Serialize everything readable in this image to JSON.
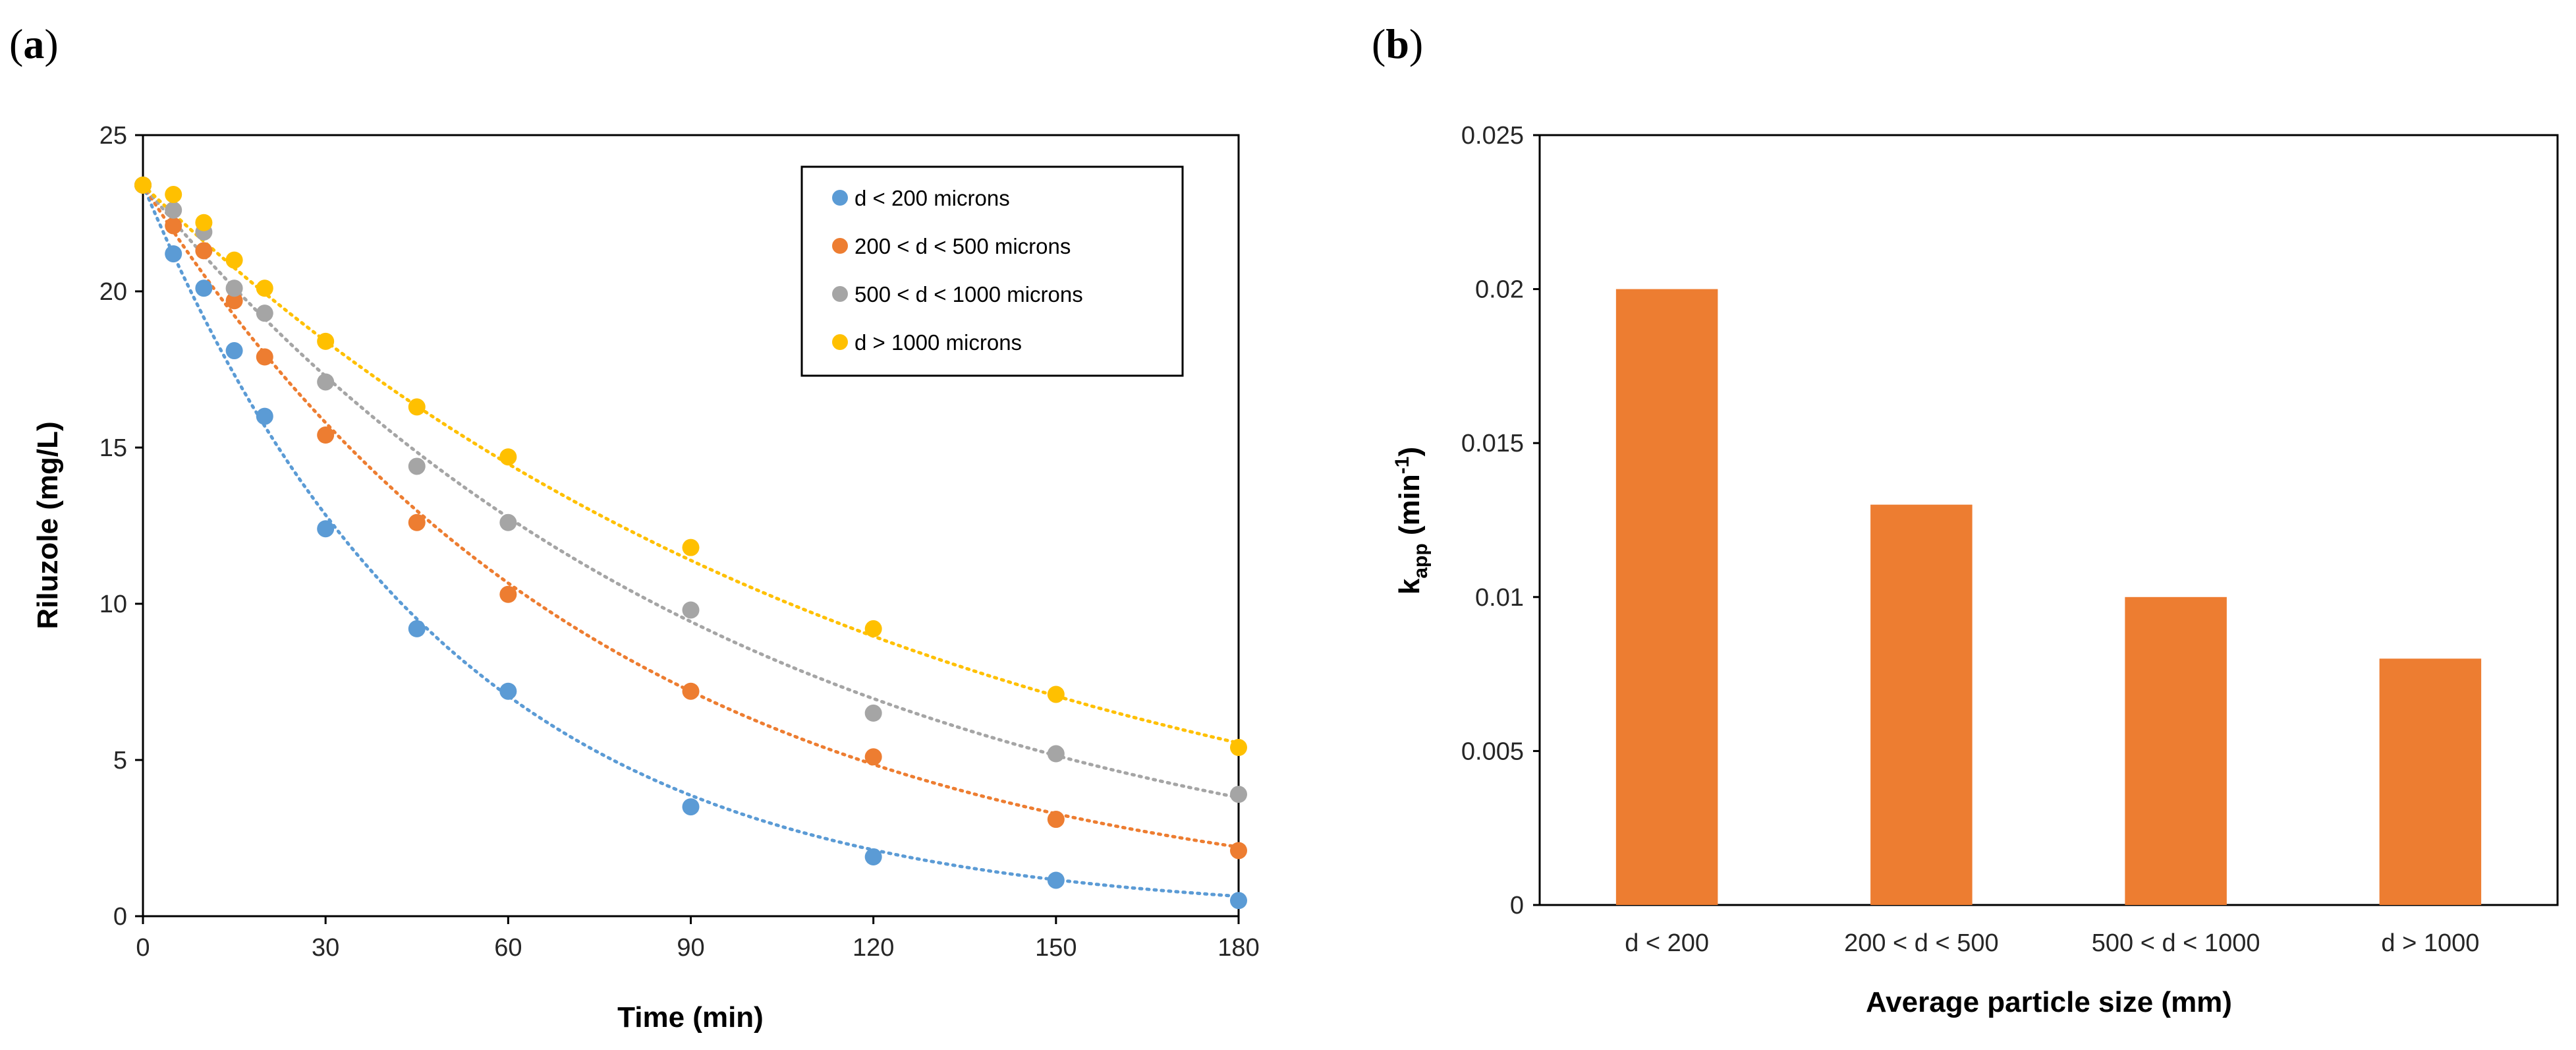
{
  "panels": {
    "a_open": "(",
    "a_letter": "a",
    "a_close": ")",
    "b_open": "(",
    "b_letter": "b",
    "b_close": ")"
  },
  "chart_data": [
    {
      "type": "scatter",
      "panel": "a",
      "title": "",
      "xlabel": "Time (min)",
      "ylabel": "Riluzole (mg/L)",
      "xlim": [
        0,
        180
      ],
      "ylim": [
        0,
        25
      ],
      "xticks": [
        0,
        30,
        60,
        90,
        120,
        150,
        180
      ],
      "yticks": [
        0,
        5,
        10,
        15,
        20,
        25
      ],
      "legend_position": "top-right",
      "series": [
        {
          "name": "d < 200 microns",
          "color": "#5B9BD5",
          "x": [
            0,
            5,
            10,
            15,
            20,
            30,
            45,
            60,
            90,
            120,
            150,
            180
          ],
          "y": [
            23.4,
            21.2,
            20.1,
            18.1,
            16.0,
            12.4,
            9.2,
            7.2,
            3.5,
            1.9,
            1.15,
            0.5
          ],
          "fit_k": 0.02
        },
        {
          "name": "200 < d < 500 microns",
          "color": "#ED7D31",
          "x": [
            0,
            5,
            10,
            15,
            20,
            30,
            45,
            60,
            90,
            120,
            150,
            180
          ],
          "y": [
            23.4,
            22.1,
            21.3,
            19.7,
            17.9,
            15.4,
            12.6,
            10.3,
            7.2,
            5.1,
            3.1,
            2.1
          ],
          "fit_k": 0.0131
        },
        {
          "name": "500 < d < 1000 microns",
          "color": "#A5A5A5",
          "x": [
            0,
            5,
            10,
            15,
            20,
            30,
            45,
            60,
            90,
            120,
            150,
            180
          ],
          "y": [
            23.4,
            22.6,
            21.9,
            20.1,
            19.3,
            17.1,
            14.4,
            12.6,
            9.8,
            6.5,
            5.2,
            3.9
          ],
          "fit_k": 0.0101
        },
        {
          "name": "d > 1000 microns",
          "color": "#FFC000",
          "x": [
            0,
            5,
            10,
            15,
            20,
            30,
            45,
            60,
            90,
            120,
            150,
            180
          ],
          "y": [
            23.4,
            23.1,
            22.2,
            21.0,
            20.1,
            18.4,
            16.3,
            14.7,
            11.8,
            9.2,
            7.1,
            5.4
          ],
          "fit_k": 0.008
        }
      ]
    },
    {
      "type": "bar",
      "panel": "b",
      "title": "",
      "xlabel": "Average particle size (mm)",
      "ylabel_main": "k",
      "ylabel_sub": "app",
      "ylabel_unit": " (min",
      "ylabel_sup": "-1",
      "ylabel_close": ")",
      "categories": [
        "d < 200",
        "200 < d < 500",
        "500 < d < 1000",
        "d > 1000"
      ],
      "values": [
        0.02,
        0.013,
        0.01,
        0.008
      ],
      "ylim": [
        0,
        0.025
      ],
      "yticks": [
        0,
        0.005,
        0.01,
        0.015,
        0.02,
        0.025
      ],
      "ytick_labels": [
        "0",
        "0.005",
        "0.01",
        "0.015",
        "0.02",
        "0.025"
      ],
      "bar_color": "#ED7D31"
    }
  ]
}
